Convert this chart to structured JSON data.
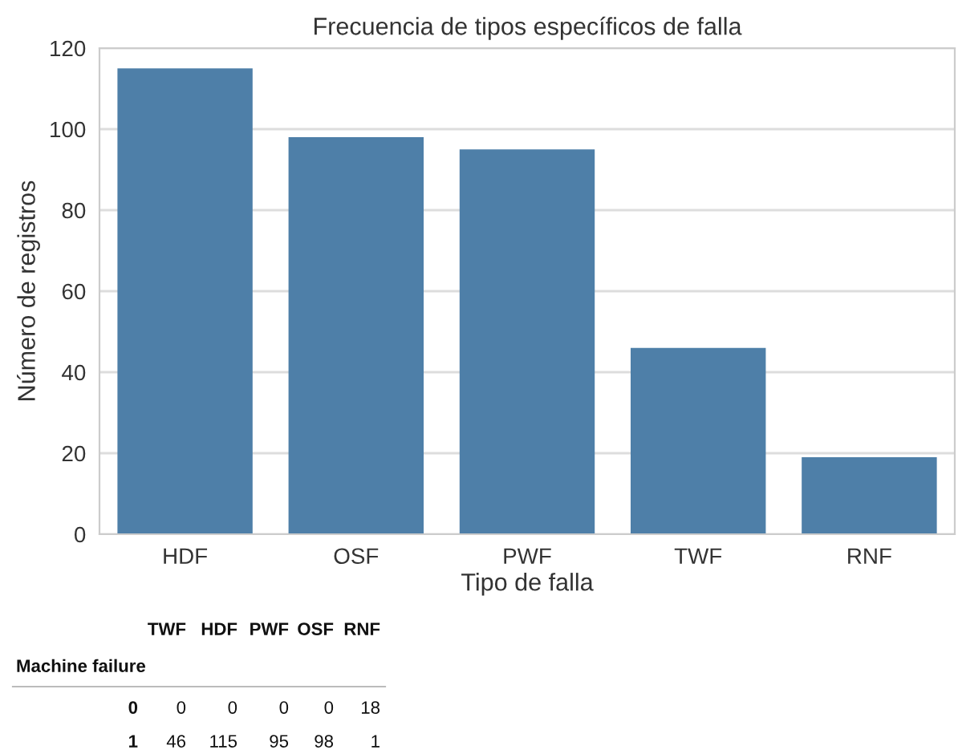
{
  "chart_data": [
    {
      "type": "bar",
      "title": "Frecuencia de tipos específicos de falla",
      "xlabel": "Tipo de falla",
      "ylabel": "Número de registros",
      "categories": [
        "HDF",
        "OSF",
        "PWF",
        "TWF",
        "RNF"
      ],
      "values": [
        115,
        98,
        95,
        46,
        19
      ],
      "color": "#4e7fa8",
      "ylim": [
        0,
        120
      ],
      "yticks": [
        0,
        20,
        40,
        60,
        80,
        100,
        120
      ],
      "grid": "y"
    },
    {
      "type": "other",
      "annotations": [
        "TWF",
        "HDF",
        "PWF",
        "OSF",
        "RNF",
        "Machine failure",
        "0",
        "0",
        "0",
        "0",
        "0",
        "18",
        "1",
        "46",
        "115",
        "95",
        "98",
        "1"
      ]
    }
  ]
}
